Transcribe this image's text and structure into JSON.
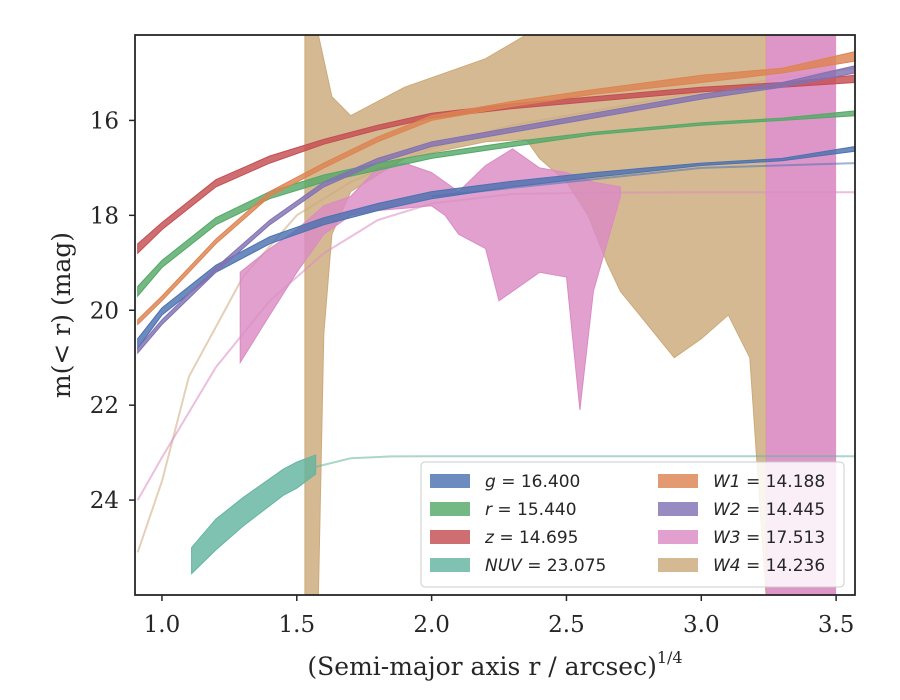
{
  "chart_data": {
    "type": "area",
    "xlabel": "(Semi-major axis r / arcsec)",
    "xlabel_exp": "1/4",
    "ylabel": "m(< r) (mag)",
    "xlim": [
      0.9,
      3.57
    ],
    "ylim": [
      26.0,
      14.2
    ],
    "y_inverted": true,
    "x_ticks": [
      1.0,
      1.5,
      2.0,
      2.5,
      3.0,
      3.5
    ],
    "x_tick_labels": [
      "1.0",
      "1.5",
      "2.0",
      "2.5",
      "3.0",
      "3.5"
    ],
    "y_ticks": [
      16,
      18,
      20,
      22,
      24
    ],
    "y_tick_labels": [
      "16",
      "18",
      "20",
      "22",
      "24"
    ],
    "legend_position": "lower-right",
    "series": [
      {
        "name": "g = 16.400",
        "var": "g",
        "value": "16.400",
        "color": "#4c72b0",
        "lower": [
          [
            0.91,
            20.8
          ],
          [
            1.0,
            20.1
          ],
          [
            1.2,
            19.2
          ],
          [
            1.4,
            18.6
          ],
          [
            1.6,
            18.2
          ],
          [
            1.8,
            17.9
          ],
          [
            2.0,
            17.65
          ],
          [
            2.3,
            17.4
          ],
          [
            2.6,
            17.2
          ],
          [
            3.0,
            16.95
          ],
          [
            3.3,
            16.85
          ],
          [
            3.57,
            16.65
          ]
        ],
        "upper": [
          [
            0.91,
            20.6
          ],
          [
            1.0,
            19.95
          ],
          [
            1.2,
            19.05
          ],
          [
            1.4,
            18.45
          ],
          [
            1.6,
            18.05
          ],
          [
            1.8,
            17.75
          ],
          [
            2.0,
            17.5
          ],
          [
            2.3,
            17.28
          ],
          [
            2.6,
            17.1
          ],
          [
            3.0,
            16.9
          ],
          [
            3.3,
            16.8
          ],
          [
            3.57,
            16.55
          ]
        ],
        "line": [
          [
            2.0,
            17.6
          ],
          [
            2.5,
            17.3
          ],
          [
            3.0,
            17.0
          ],
          [
            3.57,
            16.9
          ]
        ]
      },
      {
        "name": "r = 15.440",
        "var": "r",
        "value": "15.440",
        "color": "#55a868",
        "lower": [
          [
            0.91,
            19.7
          ],
          [
            1.0,
            19.1
          ],
          [
            1.2,
            18.2
          ],
          [
            1.4,
            17.65
          ],
          [
            1.6,
            17.3
          ],
          [
            1.8,
            17.05
          ],
          [
            2.0,
            16.8
          ],
          [
            2.3,
            16.55
          ],
          [
            2.6,
            16.3
          ],
          [
            3.0,
            16.1
          ],
          [
            3.3,
            16.0
          ],
          [
            3.57,
            15.9
          ]
        ],
        "upper": [
          [
            0.91,
            19.5
          ],
          [
            1.0,
            18.95
          ],
          [
            1.2,
            18.05
          ],
          [
            1.4,
            17.5
          ],
          [
            1.6,
            17.15
          ],
          [
            1.8,
            16.9
          ],
          [
            2.0,
            16.7
          ],
          [
            2.3,
            16.45
          ],
          [
            2.6,
            16.25
          ],
          [
            3.0,
            16.05
          ],
          [
            3.3,
            15.95
          ],
          [
            3.57,
            15.8
          ]
        ]
      },
      {
        "name": "z = 14.695",
        "var": "z",
        "value": "14.695",
        "color": "#c44e52",
        "lower": [
          [
            0.91,
            18.8
          ],
          [
            1.0,
            18.3
          ],
          [
            1.2,
            17.4
          ],
          [
            1.4,
            16.9
          ],
          [
            1.6,
            16.5
          ],
          [
            1.8,
            16.2
          ],
          [
            2.0,
            15.95
          ],
          [
            2.3,
            15.75
          ],
          [
            2.6,
            15.6
          ],
          [
            3.0,
            15.4
          ],
          [
            3.3,
            15.3
          ],
          [
            3.57,
            15.2
          ]
        ],
        "upper": [
          [
            0.91,
            18.6
          ],
          [
            1.0,
            18.15
          ],
          [
            1.2,
            17.25
          ],
          [
            1.4,
            16.75
          ],
          [
            1.6,
            16.4
          ],
          [
            1.8,
            16.1
          ],
          [
            2.0,
            15.85
          ],
          [
            2.3,
            15.65
          ],
          [
            2.6,
            15.5
          ],
          [
            3.0,
            15.3
          ],
          [
            3.3,
            15.2
          ],
          [
            3.57,
            15.05
          ]
        ]
      },
      {
        "name": "NUV = 23.075",
        "var": "NUV",
        "value": "23.075",
        "color": "#64b5a0",
        "lower": [
          [
            1.11,
            25.55
          ],
          [
            1.2,
            25.05
          ],
          [
            1.3,
            24.55
          ],
          [
            1.45,
            23.9
          ],
          [
            1.5,
            23.75
          ],
          [
            1.57,
            23.45
          ]
        ],
        "upper": [
          [
            1.11,
            25.0
          ],
          [
            1.2,
            24.4
          ],
          [
            1.3,
            23.95
          ],
          [
            1.45,
            23.35
          ],
          [
            1.5,
            23.2
          ],
          [
            1.57,
            23.05
          ]
        ],
        "line": [
          [
            1.57,
            23.3
          ],
          [
            1.7,
            23.12
          ],
          [
            1.85,
            23.08
          ],
          [
            2.0,
            23.075
          ],
          [
            3.57,
            23.075
          ]
        ]
      },
      {
        "name": "W1 = 14.188",
        "var": "W1",
        "value": "14.188",
        "color": "#dd8452",
        "lower": [
          [
            0.91,
            20.3
          ],
          [
            1.0,
            19.8
          ],
          [
            1.2,
            18.6
          ],
          [
            1.4,
            17.6
          ],
          [
            1.6,
            17.0
          ],
          [
            1.8,
            16.45
          ],
          [
            2.0,
            16.0
          ],
          [
            2.3,
            15.7
          ],
          [
            2.6,
            15.45
          ],
          [
            3.0,
            15.2
          ],
          [
            3.3,
            15.0
          ],
          [
            3.57,
            14.75
          ]
        ],
        "upper": [
          [
            0.91,
            20.2
          ],
          [
            1.0,
            19.7
          ],
          [
            1.2,
            18.5
          ],
          [
            1.4,
            17.5
          ],
          [
            1.6,
            16.9
          ],
          [
            1.8,
            16.35
          ],
          [
            2.0,
            15.9
          ],
          [
            2.3,
            15.6
          ],
          [
            2.6,
            15.35
          ],
          [
            3.0,
            15.05
          ],
          [
            3.3,
            14.9
          ],
          [
            3.57,
            14.55
          ]
        ]
      },
      {
        "name": "W2 = 14.445",
        "var": "W2",
        "value": "14.445",
        "color": "#8172b3",
        "lower": [
          [
            0.91,
            20.9
          ],
          [
            1.0,
            20.3
          ],
          [
            1.2,
            19.2
          ],
          [
            1.4,
            18.2
          ],
          [
            1.6,
            17.4
          ],
          [
            1.8,
            16.9
          ],
          [
            2.0,
            16.55
          ],
          [
            2.3,
            16.25
          ],
          [
            2.6,
            15.95
          ],
          [
            3.0,
            15.55
          ],
          [
            3.3,
            15.3
          ],
          [
            3.57,
            15.0
          ]
        ],
        "upper": [
          [
            0.91,
            20.8
          ],
          [
            1.0,
            20.2
          ],
          [
            1.2,
            19.1
          ],
          [
            1.4,
            18.1
          ],
          [
            1.6,
            17.3
          ],
          [
            1.8,
            16.8
          ],
          [
            2.0,
            16.45
          ],
          [
            2.3,
            16.15
          ],
          [
            2.6,
            15.85
          ],
          [
            3.0,
            15.45
          ],
          [
            3.3,
            15.2
          ],
          [
            3.57,
            14.85
          ]
        ]
      },
      {
        "name": "W3 = 17.513",
        "var": "W3",
        "value": "17.513",
        "color": "#da8bc3",
        "lower": [
          [
            1.29,
            21.1
          ],
          [
            1.4,
            20.1
          ],
          [
            1.5,
            19.2
          ],
          [
            1.6,
            18.4
          ],
          [
            1.7,
            18.0
          ],
          [
            1.8,
            17.9
          ],
          [
            1.9,
            17.85
          ],
          [
            2.0,
            17.8
          ],
          [
            2.05,
            18.0
          ],
          [
            2.1,
            18.4
          ],
          [
            2.2,
            18.7
          ],
          [
            2.25,
            19.8
          ],
          [
            2.3,
            19.6
          ],
          [
            2.4,
            19.2
          ],
          [
            2.5,
            19.3
          ],
          [
            2.55,
            22.1
          ],
          [
            2.6,
            19.6
          ],
          [
            2.7,
            17.6
          ]
        ],
        "upper": [
          [
            1.29,
            19.2
          ],
          [
            1.4,
            18.7
          ],
          [
            1.5,
            18.3
          ],
          [
            1.6,
            17.8
          ],
          [
            1.7,
            17.6
          ],
          [
            1.8,
            17.0
          ],
          [
            1.9,
            16.9
          ],
          [
            2.0,
            17.1
          ],
          [
            2.1,
            17.5
          ],
          [
            2.2,
            16.95
          ],
          [
            2.3,
            16.6
          ],
          [
            2.4,
            17.0
          ],
          [
            2.5,
            17.1
          ],
          [
            2.6,
            17.3
          ],
          [
            2.7,
            17.4
          ]
        ],
        "block_x": [
          3.24,
          3.5
        ],
        "line": [
          [
            0.91,
            24.0
          ],
          [
            1.0,
            23.1
          ],
          [
            1.2,
            21.2
          ],
          [
            1.4,
            19.8
          ],
          [
            1.6,
            18.8
          ],
          [
            1.8,
            18.1
          ],
          [
            2.0,
            17.75
          ],
          [
            2.3,
            17.55
          ],
          [
            2.6,
            17.52
          ],
          [
            3.0,
            17.513
          ],
          [
            3.57,
            17.513
          ]
        ]
      },
      {
        "name": "W4 = 14.236",
        "var": "W4",
        "value": "14.236",
        "color": "#ccaa7a",
        "lower": [
          [
            1.53,
            26.0
          ],
          [
            1.58,
            26.0
          ],
          [
            1.6,
            20.5
          ],
          [
            1.63,
            18.4
          ],
          [
            1.7,
            17.5
          ],
          [
            1.9,
            16.8
          ],
          [
            2.2,
            16.45
          ],
          [
            2.35,
            16.4
          ],
          [
            2.4,
            16.8
          ],
          [
            2.5,
            17.3
          ],
          [
            2.58,
            18.0
          ],
          [
            2.65,
            19.0
          ],
          [
            2.7,
            19.6
          ],
          [
            2.8,
            20.3
          ],
          [
            2.9,
            21.0
          ],
          [
            3.0,
            20.6
          ],
          [
            3.1,
            20.1
          ],
          [
            3.18,
            21.0
          ],
          [
            3.24,
            26.0
          ]
        ],
        "upper": [
          [
            1.53,
            14.2
          ],
          [
            1.58,
            14.2
          ],
          [
            1.63,
            15.5
          ],
          [
            1.7,
            15.9
          ],
          [
            1.9,
            15.3
          ],
          [
            2.2,
            14.7
          ],
          [
            2.35,
            14.2
          ],
          [
            3.24,
            14.2
          ]
        ],
        "line": [
          [
            0.91,
            25.1
          ],
          [
            1.0,
            23.6
          ],
          [
            1.1,
            21.4
          ],
          [
            1.3,
            19.3
          ],
          [
            1.5,
            18.0
          ],
          [
            1.7,
            17.3
          ],
          [
            1.9,
            16.8
          ],
          [
            2.1,
            16.4
          ],
          [
            2.3,
            16.1
          ],
          [
            2.6,
            15.8
          ],
          [
            3.0,
            15.4
          ],
          [
            3.3,
            15.1
          ],
          [
            3.57,
            14.9
          ]
        ]
      }
    ]
  }
}
